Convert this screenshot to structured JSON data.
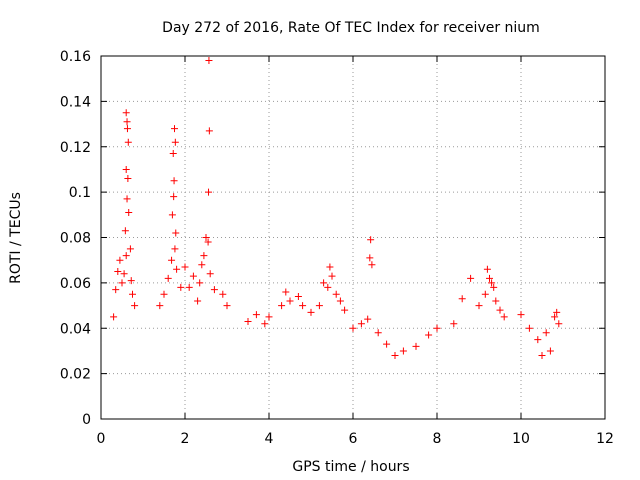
{
  "chart_data": {
    "type": "scatter",
    "title": "Day 272 of 2016, Rate Of TEC Index for receiver nium",
    "xlabel": "GPS time / hours",
    "ylabel": "ROTI / TECUs",
    "xlim": [
      0,
      12
    ],
    "ylim": [
      0,
      0.16
    ],
    "x_ticks": [
      0,
      2,
      4,
      6,
      8,
      10,
      12
    ],
    "x_tick_labels": [
      "0",
      "2",
      "4",
      "6",
      "8",
      "10",
      "12"
    ],
    "y_ticks": [
      0,
      0.02,
      0.04,
      0.06,
      0.08,
      0.1,
      0.12,
      0.14,
      0.16
    ],
    "y_tick_labels": [
      "0",
      "0.02",
      "0.04",
      "0.06",
      "0.08",
      "0.1",
      "0.12",
      "0.14",
      "0.16"
    ],
    "grid": true,
    "marker": "+",
    "series_color": "#ff0000",
    "series": [
      {
        "name": "ROTI",
        "points": [
          [
            0.6,
            0.135
          ],
          [
            0.62,
            0.131
          ],
          [
            0.63,
            0.128
          ],
          [
            0.65,
            0.122
          ],
          [
            0.6,
            0.11
          ],
          [
            0.64,
            0.106
          ],
          [
            0.62,
            0.097
          ],
          [
            0.66,
            0.091
          ],
          [
            0.58,
            0.083
          ],
          [
            0.6,
            0.072
          ],
          [
            0.55,
            0.064
          ],
          [
            0.5,
            0.06
          ],
          [
            0.45,
            0.07
          ],
          [
            0.4,
            0.065
          ],
          [
            0.35,
            0.057
          ],
          [
            0.7,
            0.075
          ],
          [
            0.72,
            0.061
          ],
          [
            0.75,
            0.055
          ],
          [
            0.8,
            0.05
          ],
          [
            0.3,
            0.045
          ],
          [
            1.75,
            0.128
          ],
          [
            1.77,
            0.122
          ],
          [
            1.72,
            0.117
          ],
          [
            1.74,
            0.105
          ],
          [
            1.73,
            0.098
          ],
          [
            1.7,
            0.09
          ],
          [
            1.78,
            0.082
          ],
          [
            1.76,
            0.075
          ],
          [
            1.68,
            0.07
          ],
          [
            1.8,
            0.066
          ],
          [
            1.6,
            0.062
          ],
          [
            1.9,
            0.058
          ],
          [
            1.5,
            0.055
          ],
          [
            2.0,
            0.067
          ],
          [
            1.4,
            0.05
          ],
          [
            2.57,
            0.158
          ],
          [
            2.58,
            0.127
          ],
          [
            2.56,
            0.1
          ],
          [
            2.5,
            0.08
          ],
          [
            2.55,
            0.078
          ],
          [
            2.45,
            0.072
          ],
          [
            2.4,
            0.068
          ],
          [
            2.6,
            0.064
          ],
          [
            2.35,
            0.06
          ],
          [
            2.7,
            0.057
          ],
          [
            2.9,
            0.055
          ],
          [
            3.0,
            0.05
          ],
          [
            2.2,
            0.063
          ],
          [
            2.1,
            0.058
          ],
          [
            2.3,
            0.052
          ],
          [
            6.42,
            0.079
          ],
          [
            6.4,
            0.071
          ],
          [
            6.45,
            0.068
          ],
          [
            6.35,
            0.044
          ],
          [
            5.45,
            0.067
          ],
          [
            5.5,
            0.063
          ],
          [
            5.4,
            0.058
          ],
          [
            5.6,
            0.055
          ],
          [
            5.3,
            0.06
          ],
          [
            5.2,
            0.05
          ],
          [
            5.7,
            0.052
          ],
          [
            5.8,
            0.048
          ],
          [
            4.4,
            0.056
          ],
          [
            4.5,
            0.052
          ],
          [
            4.3,
            0.05
          ],
          [
            4.7,
            0.054
          ],
          [
            4.8,
            0.05
          ],
          [
            5.0,
            0.047
          ],
          [
            4.0,
            0.045
          ],
          [
            3.5,
            0.043
          ],
          [
            3.7,
            0.046
          ],
          [
            3.9,
            0.042
          ],
          [
            9.2,
            0.066
          ],
          [
            9.25,
            0.062
          ],
          [
            9.3,
            0.06
          ],
          [
            9.35,
            0.058
          ],
          [
            9.4,
            0.052
          ],
          [
            9.5,
            0.048
          ],
          [
            9.6,
            0.045
          ],
          [
            9.15,
            0.055
          ],
          [
            9.0,
            0.05
          ],
          [
            8.8,
            0.062
          ],
          [
            8.6,
            0.053
          ],
          [
            8.4,
            0.042
          ],
          [
            8.0,
            0.04
          ],
          [
            7.8,
            0.037
          ],
          [
            7.5,
            0.032
          ],
          [
            7.2,
            0.03
          ],
          [
            7.0,
            0.028
          ],
          [
            6.8,
            0.033
          ],
          [
            6.6,
            0.038
          ],
          [
            6.2,
            0.042
          ],
          [
            6.0,
            0.04
          ],
          [
            10.0,
            0.046
          ],
          [
            10.2,
            0.04
          ],
          [
            10.4,
            0.035
          ],
          [
            10.6,
            0.038
          ],
          [
            10.8,
            0.045
          ],
          [
            10.85,
            0.047
          ],
          [
            10.9,
            0.042
          ],
          [
            10.7,
            0.03
          ],
          [
            10.5,
            0.028
          ]
        ]
      }
    ]
  }
}
